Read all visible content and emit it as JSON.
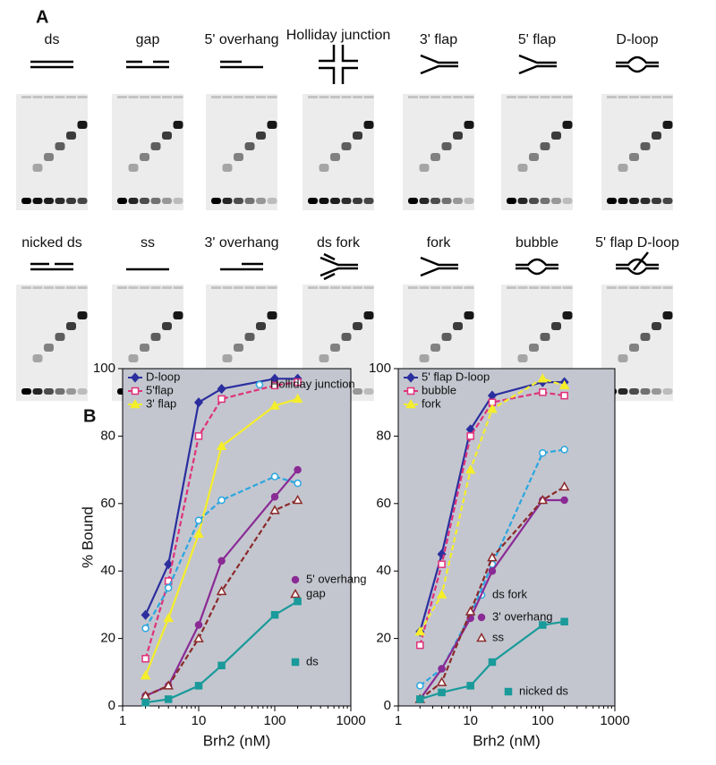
{
  "panel_a": {
    "label": "A",
    "gels": [
      {
        "label": "ds"
      },
      {
        "label": "gap"
      },
      {
        "label": "5' overhang"
      },
      {
        "label": "Holliday junction"
      },
      {
        "label": "3' flap"
      },
      {
        "label": "5' flap"
      },
      {
        "label": "D-loop"
      },
      {
        "label": "nicked ds"
      },
      {
        "label": "ss"
      },
      {
        "label": "3' overhang"
      },
      {
        "label": "ds fork"
      },
      {
        "label": "fork"
      },
      {
        "label": "bubble"
      },
      {
        "label": "5' flap D-loop"
      }
    ]
  },
  "panel_b": {
    "label": "B"
  },
  "chart_data": [
    {
      "type": "line",
      "xlabel": "Brh2 (nM)",
      "ylabel": "% Bound",
      "log_x": true,
      "xlim": [
        1,
        1000
      ],
      "xticks": [
        1,
        10,
        100,
        1000
      ],
      "ylim": [
        0,
        100
      ],
      "yticks": [
        0,
        20,
        40,
        60,
        80,
        100
      ],
      "x": [
        2,
        4,
        10,
        20,
        100,
        200
      ],
      "series": [
        {
          "name": "D-loop",
          "color": "#2b2f9e",
          "dash": false,
          "marker": "diamond",
          "values": [
            27,
            42,
            90,
            94,
            97,
            97
          ]
        },
        {
          "name": "5'flap",
          "color": "#e0317a",
          "dash": true,
          "marker": "open-square",
          "values": [
            14,
            37,
            80,
            91,
            95,
            96
          ]
        },
        {
          "name": "3' flap",
          "color": "#f5ee2a",
          "dash": false,
          "marker": "triangle",
          "values": [
            9,
            26,
            51,
            77,
            89,
            91
          ]
        },
        {
          "name": "Holliday junction",
          "color": "#2aa6e0",
          "dash": true,
          "marker": "open-circle",
          "values": [
            23,
            35,
            55,
            61,
            68,
            66
          ]
        },
        {
          "name": "5' overhang",
          "color": "#8a2a95",
          "dash": false,
          "marker": "circle",
          "values": [
            3,
            6,
            24,
            43,
            62,
            70
          ]
        },
        {
          "name": "gap",
          "color": "#8b2a2a",
          "dash": true,
          "marker": "open-triangle",
          "values": [
            3,
            6,
            20,
            34,
            58,
            61
          ]
        },
        {
          "name": "ds",
          "color": "#1a9a9a",
          "dash": false,
          "marker": "square",
          "values": [
            1,
            2,
            6,
            12,
            27,
            31
          ]
        }
      ]
    },
    {
      "type": "line",
      "xlabel": "Brh2 (nM)",
      "log_x": true,
      "xlim": [
        1,
        1000
      ],
      "xticks": [
        1,
        10,
        100,
        1000
      ],
      "ylim": [
        0,
        100
      ],
      "yticks": [
        0,
        20,
        40,
        60,
        80,
        100
      ],
      "x": [
        2,
        4,
        10,
        20,
        100,
        200
      ],
      "series": [
        {
          "name": "5' flap D-loop",
          "color": "#2b2f9e",
          "dash": false,
          "marker": "diamond",
          "values": [
            22,
            45,
            82,
            92,
            96,
            96
          ]
        },
        {
          "name": "bubble",
          "color": "#e0317a",
          "dash": true,
          "marker": "open-square",
          "values": [
            18,
            42,
            80,
            90,
            93,
            92
          ]
        },
        {
          "name": "fork",
          "color": "#f5ee2a",
          "dash": true,
          "marker": "triangle",
          "values": [
            22,
            33,
            70,
            88,
            97,
            95
          ]
        },
        {
          "name": "ds fork",
          "color": "#2aa6e0",
          "dash": true,
          "marker": "open-circle",
          "values": [
            6,
            11,
            27,
            42,
            75,
            76
          ]
        },
        {
          "name": "3' overhang",
          "color": "#8a2a95",
          "dash": false,
          "marker": "circle",
          "values": [
            2,
            11,
            26,
            40,
            61,
            61
          ]
        },
        {
          "name": "ss",
          "color": "#8b2a2a",
          "dash": true,
          "marker": "open-triangle",
          "values": [
            2,
            7,
            28,
            44,
            61,
            65
          ]
        },
        {
          "name": "nicked ds",
          "color": "#1a9a9a",
          "dash": false,
          "marker": "square",
          "values": [
            2,
            4,
            6,
            13,
            24,
            25
          ]
        }
      ]
    }
  ]
}
